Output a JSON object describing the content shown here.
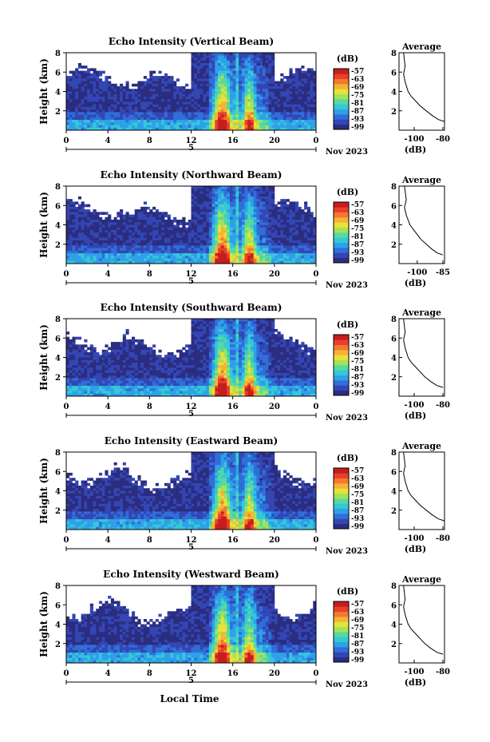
{
  "common": {
    "height_axis_label": "Height (km)",
    "height_ticks": [
      "2",
      "4",
      "6",
      "8"
    ],
    "time_ticks": [
      "0",
      "4",
      "8",
      "12",
      "16",
      "20",
      "0"
    ],
    "date_day": "5",
    "date_month_year": "Nov 2023",
    "colorbar_unit": "(dB)",
    "colorbar_ticks": [
      "-57",
      "-63",
      "-69",
      "-75",
      "-81",
      "-87",
      "-93",
      "-99"
    ],
    "average_title": "Average",
    "average_unit": "(dB)",
    "xlabel_bottom": "Local Time",
    "colormap": [
      "#2b2d7f",
      "#3346b4",
      "#2f6fd8",
      "#2fa0e8",
      "#34c8d8",
      "#57d9a0",
      "#a2e35a",
      "#e6e23a",
      "#f7b236",
      "#f27a2e",
      "#e8402b",
      "#c61e1e"
    ],
    "no_data_color": "#ffffff"
  },
  "panels": [
    {
      "title": "Echo Intensity (Vertical Beam)",
      "avg_ticks": [
        "-100",
        "-80"
      ]
    },
    {
      "title": "Echo Intensity (Northward Beam)",
      "avg_ticks": [
        "-100",
        "-85"
      ]
    },
    {
      "title": "Echo Intensity (Southward Beam)",
      "avg_ticks": [
        "-100",
        "-80"
      ]
    },
    {
      "title": "Echo Intensity (Eastward Beam)",
      "avg_ticks": [
        "-100",
        "-80"
      ]
    },
    {
      "title": "Echo Intensity (Westward Beam)",
      "avg_ticks": [
        "-100",
        "-80"
      ]
    }
  ],
  "chart_data": [
    {
      "type": "heatmap",
      "title": "Echo Intensity (Vertical Beam)",
      "xlabel": "",
      "ylabel": "Height (km)",
      "xlim": [
        0,
        24
      ],
      "ylim": [
        0,
        8
      ],
      "zlim": [
        -99,
        -57
      ],
      "description_of_values": "strongest echoes (-57 to -65 dB) between 14 and 19 local time below 8 km; background -90 to -99 dB; no data above ~6 km outside 12-20 LT"
    },
    {
      "type": "line",
      "title": "Average",
      "xlabel": "(dB)",
      "ylabel": "Height (km)",
      "xlim": [
        -110,
        -80
      ],
      "ylim": [
        0,
        8
      ],
      "x": [
        -80,
        -84,
        -88,
        -92,
        -96,
        -99,
        -102,
        -104,
        -105,
        -106,
        -107,
        -106,
        -107
      ],
      "y": [
        0.9,
        1.1,
        1.5,
        2.0,
        2.5,
        3.0,
        3.5,
        4.0,
        4.5,
        5.0,
        5.8,
        6.6,
        8.0
      ]
    },
    {
      "type": "heatmap",
      "title": "Echo Intensity (Northward Beam)",
      "xlabel": "",
      "ylabel": "Height (km)",
      "xlim": [
        0,
        24
      ],
      "ylim": [
        0,
        8
      ],
      "zlim": [
        -99,
        -57
      ]
    },
    {
      "type": "line",
      "title": "Average",
      "xlabel": "(dB)",
      "ylabel": "Height (km)",
      "xlim": [
        -110,
        -85
      ],
      "ylim": [
        0,
        8
      ],
      "x": [
        -86,
        -89,
        -92,
        -95,
        -98,
        -100,
        -102,
        -104,
        -105,
        -106,
        -107,
        -106,
        -107
      ],
      "y": [
        0.9,
        1.1,
        1.5,
        2.0,
        2.5,
        3.0,
        3.5,
        4.0,
        4.5,
        5.0,
        5.8,
        6.6,
        8.0
      ]
    },
    {
      "type": "heatmap",
      "title": "Echo Intensity (Southward Beam)",
      "xlabel": "",
      "ylabel": "Height (km)",
      "xlim": [
        0,
        24
      ],
      "ylim": [
        0,
        8
      ],
      "zlim": [
        -99,
        -57
      ]
    },
    {
      "type": "line",
      "title": "Average",
      "xlabel": "(dB)",
      "ylabel": "Height (km)",
      "xlim": [
        -110,
        -80
      ],
      "ylim": [
        0,
        8
      ],
      "x": [
        -81,
        -85,
        -89,
        -93,
        -96,
        -99,
        -102,
        -104,
        -105,
        -106,
        -107,
        -106,
        -107
      ],
      "y": [
        0.9,
        1.1,
        1.5,
        2.0,
        2.5,
        3.0,
        3.5,
        4.0,
        4.5,
        5.0,
        5.8,
        6.6,
        8.0
      ]
    },
    {
      "type": "heatmap",
      "title": "Echo Intensity (Eastward Beam)",
      "xlabel": "",
      "ylabel": "Height (km)",
      "xlim": [
        0,
        24
      ],
      "ylim": [
        0,
        8
      ],
      "zlim": [
        -99,
        -57
      ]
    },
    {
      "type": "line",
      "title": "Average",
      "xlabel": "(dB)",
      "ylabel": "Height (km)",
      "xlim": [
        -110,
        -80
      ],
      "ylim": [
        0,
        8
      ],
      "x": [
        -80,
        -84,
        -88,
        -92,
        -96,
        -99,
        -102,
        -104,
        -105,
        -106,
        -107,
        -106,
        -107
      ],
      "y": [
        0.9,
        1.1,
        1.5,
        2.0,
        2.5,
        3.0,
        3.5,
        4.0,
        4.5,
        5.0,
        5.8,
        6.6,
        8.0
      ]
    },
    {
      "type": "heatmap",
      "title": "Echo Intensity (Westward Beam)",
      "xlabel": "Local Time",
      "ylabel": "Height (km)",
      "xlim": [
        0,
        24
      ],
      "ylim": [
        0,
        8
      ],
      "zlim": [
        -99,
        -57
      ]
    },
    {
      "type": "line",
      "title": "Average",
      "xlabel": "(dB)",
      "ylabel": "Height (km)",
      "xlim": [
        -110,
        -80
      ],
      "ylim": [
        0,
        8
      ],
      "x": [
        -81,
        -85,
        -89,
        -93,
        -96,
        -99,
        -102,
        -104,
        -105,
        -106,
        -107,
        -106,
        -107
      ],
      "y": [
        0.9,
        1.1,
        1.5,
        2.0,
        2.5,
        3.0,
        3.5,
        4.0,
        4.5,
        5.0,
        5.8,
        6.6,
        8.0
      ]
    }
  ]
}
